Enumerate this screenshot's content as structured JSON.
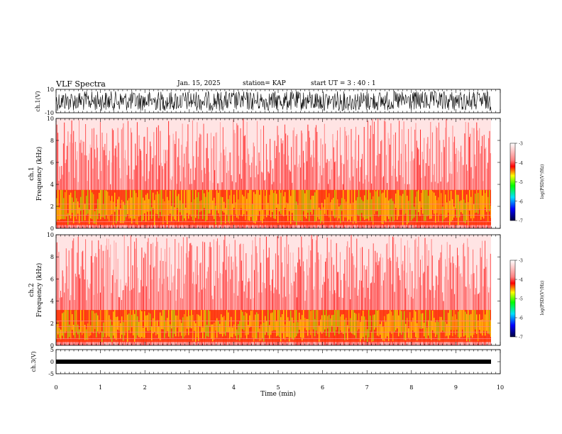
{
  "header": {
    "title": "VLF Spectra",
    "date": "Jan. 15, 2025",
    "station": "station= KAP",
    "start": "start  UT =   3 : 40 : 1"
  },
  "chart_data": [
    {
      "type": "line",
      "panel": "ch1-waveform",
      "ylabel": "ch.1(V)",
      "ylim": [
        -10,
        10
      ],
      "yticks": [
        "10",
        "-10"
      ],
      "x_range_min": [
        0,
        9.8
      ],
      "line_color": "#000000"
    },
    {
      "type": "heatmap",
      "panel": "ch1-spectrogram",
      "ylabel_channel": "ch.1",
      "ylabel": "Frequency (kHz)",
      "ylim": [
        0,
        10
      ],
      "yticks": [
        "0",
        "2",
        "4",
        "6",
        "8",
        "10"
      ],
      "x_range_min": [
        0,
        9.8
      ],
      "intense_band_khz": [
        0.3,
        3.5
      ],
      "colorbar": {
        "label": "log(PSD)(V²/Hz)",
        "range": [
          -7,
          -3
        ],
        "ticks": [
          "-3",
          "-4",
          "-5",
          "-6",
          "-7"
        ]
      }
    },
    {
      "type": "heatmap",
      "panel": "ch2-spectrogram",
      "ylabel_channel": "ch.2",
      "ylabel": "Frequency (kHz)",
      "ylim": [
        0,
        10
      ],
      "yticks": [
        "0",
        "2",
        "4",
        "6",
        "8",
        "10"
      ],
      "x_range_min": [
        0,
        9.8
      ],
      "intense_band_khz": [
        0.3,
        3.2
      ],
      "colorbar": {
        "label": "log(PSD)(V²/Hz)",
        "range": [
          -7,
          -3
        ],
        "ticks": [
          "-3",
          "-4",
          "-5",
          "-6",
          "-7"
        ]
      }
    },
    {
      "type": "line",
      "panel": "ch3-waveform",
      "ylabel": "ch.3(V)",
      "ylim": [
        -5,
        5
      ],
      "yticks": [
        "5",
        "0",
        "-5"
      ],
      "x_range_min": [
        0,
        9.8
      ],
      "line_color": "#000000"
    }
  ],
  "xaxis": {
    "label": "Time (min)",
    "ticks": [
      "0",
      "1",
      "2",
      "3",
      "4",
      "5",
      "6",
      "7",
      "8",
      "9",
      "10"
    ],
    "range": [
      0,
      10
    ]
  }
}
